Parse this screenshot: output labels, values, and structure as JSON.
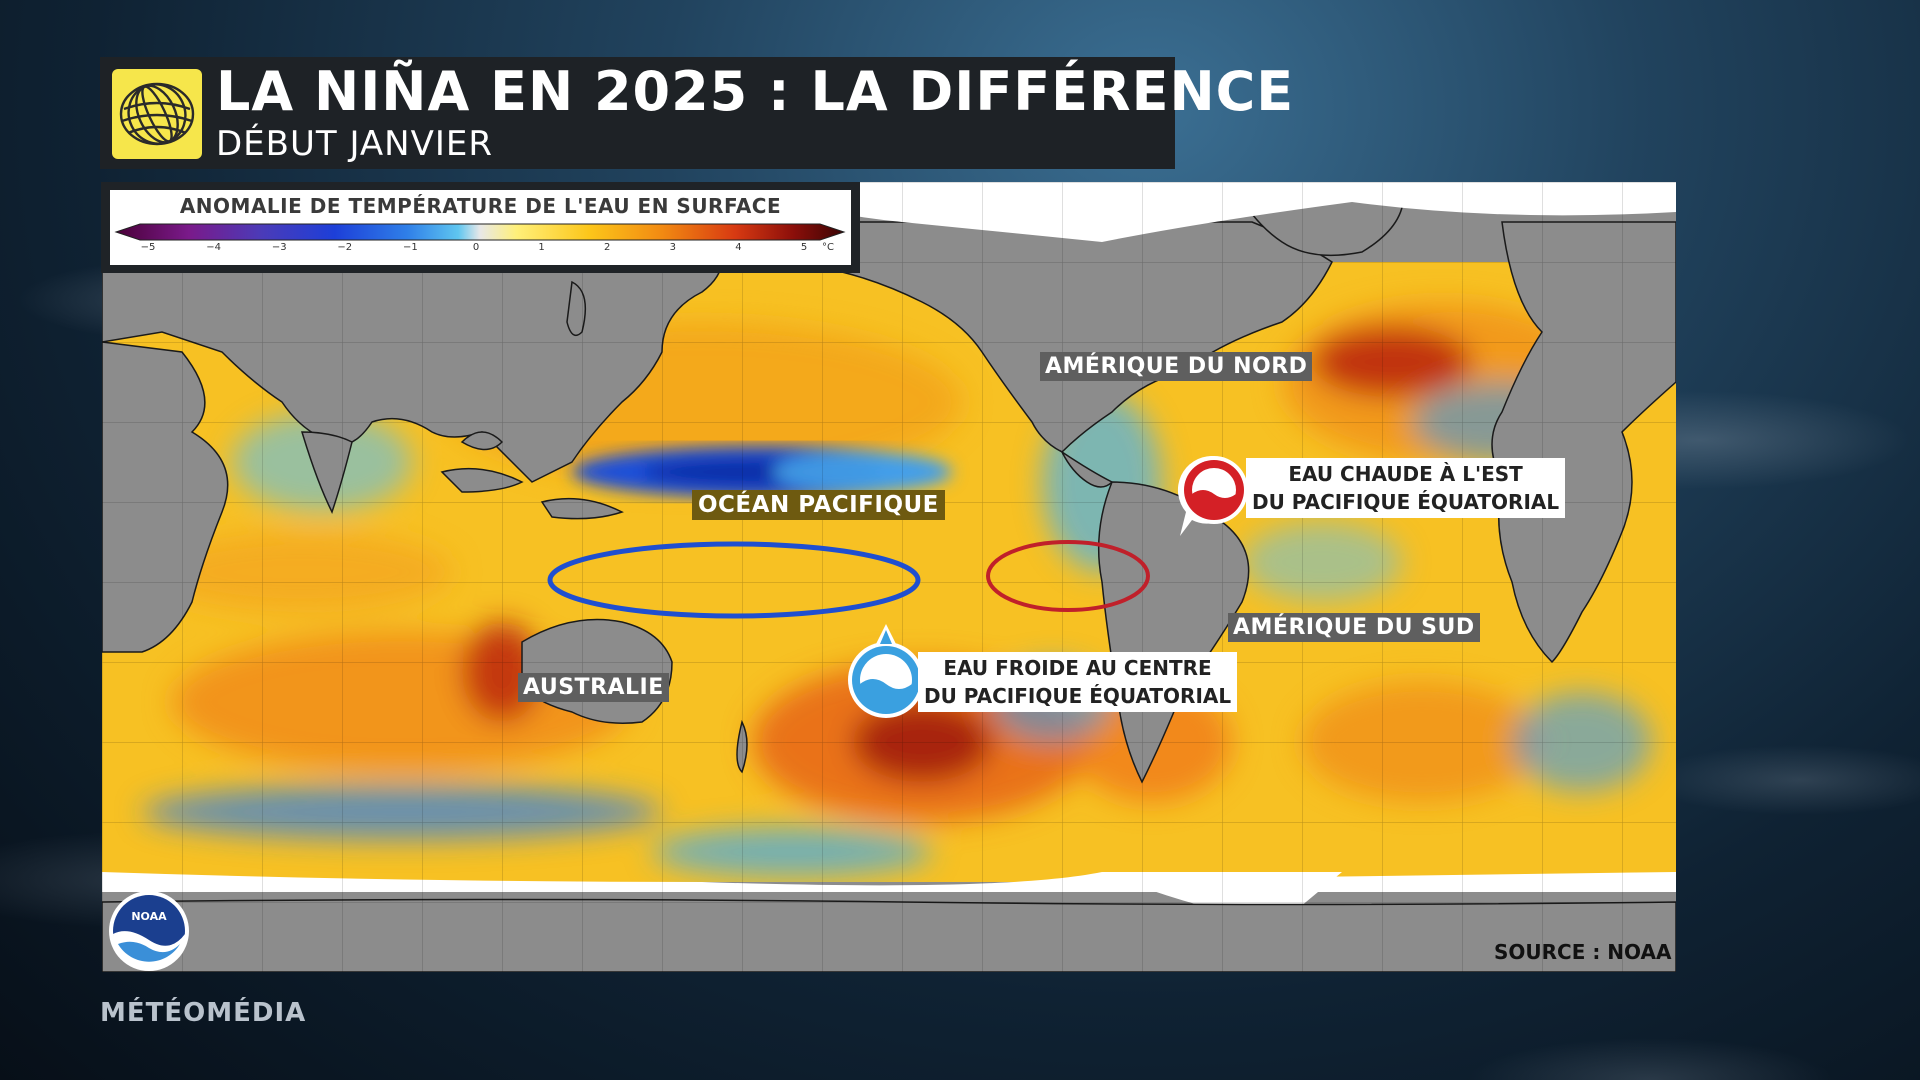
{
  "header": {
    "title": "LA NIÑA EN 2025 : LA DIFFÉRENCE",
    "subtitle": "DÉBUT JANVIER"
  },
  "legend": {
    "title": "ANOMALIE DE TEMPÉRATURE DE L'EAU EN SURFACE",
    "ticks": [
      "−5",
      "−4",
      "−3",
      "−2",
      "−1",
      "0",
      "1",
      "2",
      "3",
      "4",
      "5"
    ],
    "unit": "°C",
    "range": [
      -5,
      5
    ],
    "colors": [
      "#4a0038",
      "#7a1a8a",
      "#4b3bb8",
      "#1d3fd8",
      "#2f7fe8",
      "#5fc6f0",
      "#e8e8e8",
      "#fff07a",
      "#fcc61a",
      "#f28a12",
      "#d83a12",
      "#8c0f0a",
      "#3a0404"
    ]
  },
  "labels": {
    "north_america": "AMÉRIQUE DU NORD",
    "south_america": "AMÉRIQUE DU SUD",
    "pacific": "OCÉAN PACIFIQUE",
    "australia": "AUSTRALIE"
  },
  "callouts": {
    "warm": {
      "line1": "EAU CHAUDE À L'EST",
      "line2": "DU PACIFIQUE ÉQUATORIAL",
      "color": "#d42026"
    },
    "cold": {
      "line1": "EAU FROIDE AU CENTRE",
      "line2": "DU PACIFIQUE ÉQUATORIAL",
      "color": "#3aa0e0"
    }
  },
  "source": "SOURCE : NOAA",
  "brand": "MÉTÉOMÉDIA",
  "icons": {
    "logo": "meteomedia-globe-icon",
    "noaa": "noaa-logo",
    "warm": "warm-water-drop-icon",
    "cold": "cold-water-drop-icon"
  }
}
